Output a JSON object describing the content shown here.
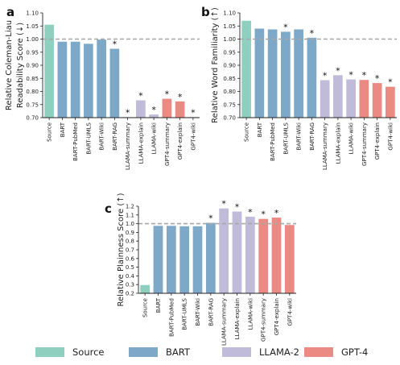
{
  "colors": {
    "Source": "#8fcfbf",
    "BART": "#7ea8c8",
    "LLAMA-2": "#bfbbd9",
    "GPT-4": "#ea8a82",
    "refline": "#a8a8a8"
  },
  "legend": [
    {
      "name": "Source",
      "color_key": "Source"
    },
    {
      "name": "BART",
      "color_key": "BART"
    },
    {
      "name": "LLAMA-2",
      "color_key": "LLAMA-2"
    },
    {
      "name": "GPT-4",
      "color_key": "GPT-4"
    }
  ],
  "chart_data": [
    {
      "panel": "a",
      "type": "bar",
      "ylabel_lines": [
        "Relative Coleman-Liau",
        "Readability Score (↓)"
      ],
      "ylim": [
        0.7,
        1.1
      ],
      "yticks": [
        "0.70",
        "0.75",
        "0.80",
        "0.85",
        "0.90",
        "0.95",
        "1.00",
        "1.05",
        "1.10"
      ],
      "reference_line": 1.0,
      "categories": [
        "Source",
        "BART",
        "BART-PubMed",
        "BART-UMLS",
        "BART-Wiki",
        "BART-RAG",
        "LLAMA-summary",
        "LLAMA-explain",
        "LLAMA-wiki",
        "GPT4-summary",
        "GPT4-explain",
        "GPT4-wiki"
      ],
      "groups": [
        "Source",
        "BART",
        "BART",
        "BART",
        "BART",
        "BART",
        "LLAMA-2",
        "LLAMA-2",
        "LLAMA-2",
        "GPT-4",
        "GPT-4",
        "GPT-4"
      ],
      "values": [
        1.055,
        0.99,
        0.99,
        0.982,
        0.998,
        0.963,
        0.702,
        0.766,
        0.712,
        0.772,
        0.762,
        0.702
      ],
      "significant": [
        false,
        false,
        false,
        false,
        false,
        true,
        true,
        true,
        true,
        true,
        true,
        true
      ]
    },
    {
      "panel": "b",
      "type": "bar",
      "ylabel_lines": [
        "Relative Word Familiarity (↑)"
      ],
      "ylim": [
        0.7,
        1.1
      ],
      "yticks": [
        "0.70",
        "0.75",
        "0.80",
        "0.85",
        "0.90",
        "0.95",
        "1.00",
        "1.05",
        "1.10"
      ],
      "reference_line": 1.0,
      "categories": [
        "Source",
        "BART",
        "BART-PubMed",
        "BART-UMLS",
        "BART-Wiki",
        "BART-RAG",
        "LLAMA-summary",
        "LLAMA-explain",
        "LLAMA-wiki",
        "GPT4-summary",
        "GPT4-explain",
        "GPT4-wiki"
      ],
      "groups": [
        "Source",
        "BART",
        "BART",
        "BART",
        "BART",
        "BART",
        "LLAMA-2",
        "LLAMA-2",
        "LLAMA-2",
        "GPT-4",
        "GPT-4",
        "GPT-4"
      ],
      "values": [
        1.07,
        1.04,
        1.037,
        1.028,
        1.037,
        1.005,
        0.843,
        0.862,
        0.846,
        0.844,
        0.832,
        0.818
      ],
      "significant": [
        false,
        false,
        false,
        true,
        false,
        true,
        true,
        true,
        true,
        true,
        true,
        true
      ]
    },
    {
      "panel": "c",
      "type": "bar",
      "ylabel_lines": [
        "Relative Plainness Score (↑)"
      ],
      "ylim": [
        0.2,
        1.2
      ],
      "yticks": [
        "0.2",
        "0.3",
        "0.4",
        "0.5",
        "0.6",
        "0.7",
        "0.8",
        "0.9",
        "1.0",
        "1.1",
        "1.2"
      ],
      "reference_line": 1.0,
      "categories": [
        "Source",
        "BART",
        "BART-PubMed",
        "BART-UMLS",
        "BART-Wiki",
        "BART-RAG",
        "LLAMA-summary",
        "LLAMA-explain",
        "LLAMA-wiki",
        "GPT4-summary",
        "GPT4-explain",
        "GPT4-wiki"
      ],
      "groups": [
        "Source",
        "BART",
        "BART",
        "BART",
        "BART",
        "BART",
        "LLAMA-2",
        "LLAMA-2",
        "LLAMA-2",
        "GPT-4",
        "GPT-4",
        "GPT-4"
      ],
      "values": [
        0.295,
        0.975,
        0.975,
        0.97,
        0.97,
        1.01,
        1.175,
        1.14,
        1.08,
        1.055,
        1.07,
        0.985
      ],
      "significant": [
        false,
        false,
        false,
        false,
        false,
        true,
        true,
        true,
        true,
        true,
        true,
        false
      ]
    }
  ]
}
